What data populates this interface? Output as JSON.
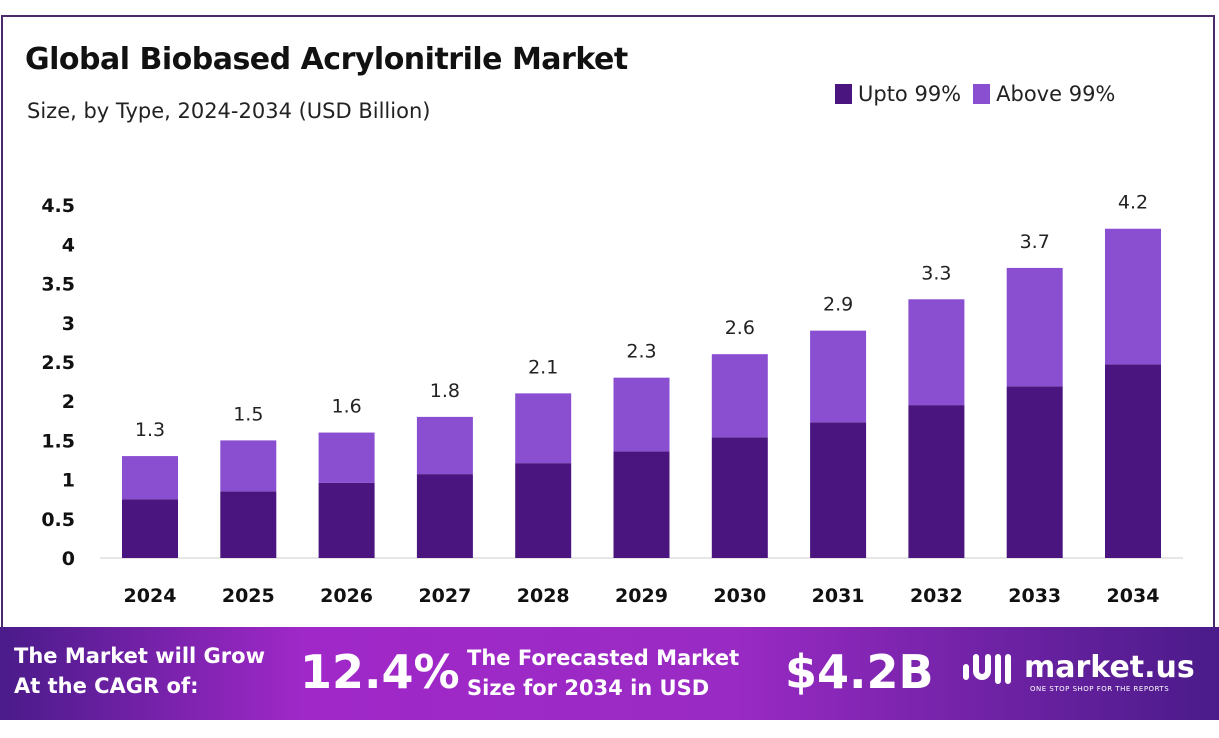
{
  "chart_data": {
    "type": "bar",
    "stacked": true,
    "title": "Global Biobased Acrylonitrile Market",
    "subtitle": "Size, by Type, 2024-2034 (USD Billion)",
    "categories": [
      "2024",
      "2025",
      "2026",
      "2027",
      "2028",
      "2029",
      "2030",
      "2031",
      "2032",
      "2033",
      "2034"
    ],
    "series": [
      {
        "name": "Upto 99%",
        "color": "#4b1580",
        "values": [
          0.75,
          0.85,
          0.96,
          1.07,
          1.21,
          1.36,
          1.54,
          1.73,
          1.95,
          2.19,
          2.47
        ]
      },
      {
        "name": "Above 99%",
        "color": "#8a4fd0",
        "values": [
          0.55,
          0.65,
          0.64,
          0.73,
          0.89,
          0.94,
          1.06,
          1.17,
          1.35,
          1.51,
          1.73
        ]
      }
    ],
    "totals_labels": [
      "1.3",
      "1.5",
      "1.6",
      "1.8",
      "2.1",
      "2.3",
      "2.6",
      "2.9",
      "3.3",
      "3.7",
      "4.2"
    ],
    "yticks": [
      "0",
      "0.5",
      "1",
      "1.5",
      "2",
      "2.5",
      "3",
      "3.5",
      "4",
      "4.5"
    ],
    "ylim": [
      0,
      4.5
    ],
    "grid": false,
    "legend": "top-right"
  },
  "banner": {
    "cagr_text_1": "The Market will Grow",
    "cagr_text_2": "At the CAGR of:",
    "cagr_value": "12.4%",
    "forecast_text_1": "The Forecasted Market",
    "forecast_text_2": "Size for 2034 in USD",
    "forecast_value": "$4.2B",
    "logo": "market.us",
    "logo_tagline": "ONE STOP SHOP FOR THE REPORTS"
  }
}
